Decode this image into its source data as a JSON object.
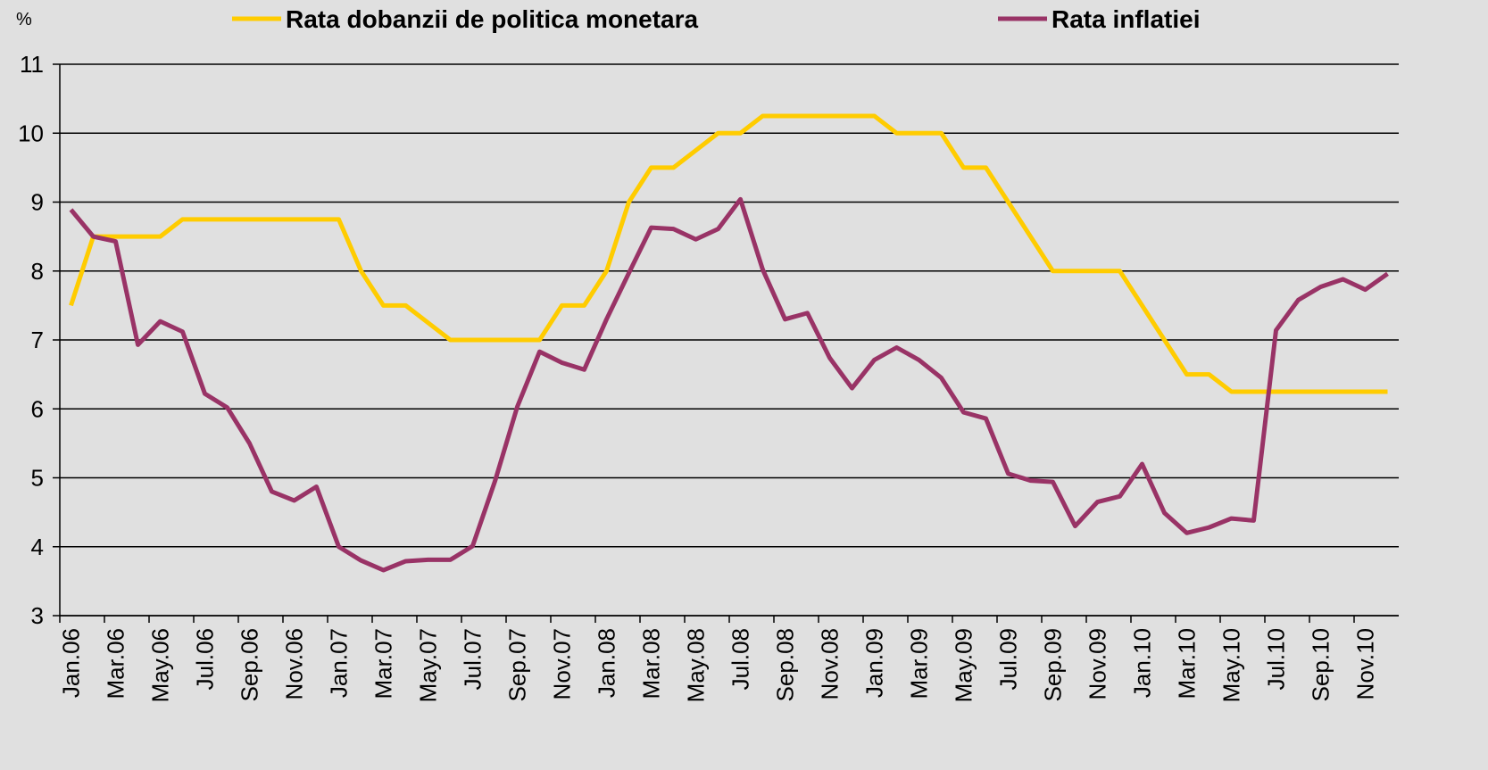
{
  "chart_data": {
    "type": "line",
    "y_label": "%",
    "categories": [
      "Jan.06",
      null,
      "Mar.06",
      null,
      "May.06",
      null,
      "Jul.06",
      null,
      "Sep.06",
      null,
      "Nov.06",
      null,
      "Jan.07",
      null,
      "Mar.07",
      null,
      "May.07",
      null,
      "Jul.07",
      null,
      "Sep.07",
      null,
      "Nov.07",
      null,
      "Jan.08",
      null,
      "Mar.08",
      null,
      "May.08",
      null,
      "Jul.08",
      null,
      "Sep.08",
      null,
      "Nov.08",
      null,
      "Jan.09",
      null,
      "Mar.09",
      null,
      "May.09",
      null,
      "Jul.09",
      null,
      "Sep.09",
      null,
      "Nov.09",
      null,
      "Jan.10",
      null,
      "Mar.10",
      null,
      "May.10",
      null,
      "Jul.10",
      null,
      "Sep.10",
      null,
      "Nov.10",
      null
    ],
    "series": [
      {
        "name": "Rata dobanzii de politica monetara",
        "color": "#ffcc00",
        "values": [
          7.5,
          8.5,
          8.5,
          8.5,
          8.5,
          8.75,
          8.75,
          8.75,
          8.75,
          8.75,
          8.75,
          8.75,
          8.75,
          8.0,
          7.5,
          7.5,
          7.25,
          7.0,
          7.0,
          7.0,
          7.0,
          7.0,
          7.5,
          7.5,
          8.0,
          9.0,
          9.5,
          9.5,
          9.75,
          10.0,
          10.0,
          10.25,
          10.25,
          10.25,
          10.25,
          10.25,
          10.25,
          10.0,
          10.0,
          10.0,
          9.5,
          9.5,
          9.0,
          8.5,
          8.0,
          8.0,
          8.0,
          8.0,
          7.5,
          7.0,
          6.5,
          6.5,
          6.25,
          6.25,
          6.25,
          6.25,
          6.25,
          6.25,
          6.25,
          6.25
        ]
      },
      {
        "name": "Rata inflatiei",
        "color": "#993366",
        "values": [
          8.89,
          8.5,
          8.43,
          6.93,
          7.27,
          7.12,
          6.22,
          6.02,
          5.5,
          4.8,
          4.67,
          4.87,
          4.0,
          3.8,
          3.66,
          3.79,
          3.81,
          3.81,
          4.01,
          4.95,
          6.03,
          6.83,
          6.67,
          6.57,
          7.3,
          7.97,
          8.63,
          8.61,
          8.46,
          8.61,
          9.04,
          8.02,
          7.3,
          7.39,
          6.74,
          6.3,
          6.71,
          6.89,
          6.71,
          6.45,
          5.95,
          5.86,
          5.06,
          4.96,
          4.94,
          4.3,
          4.65,
          4.73,
          5.2,
          4.49,
          4.2,
          4.28,
          4.41,
          4.38,
          7.14,
          7.58,
          7.77,
          7.88,
          7.73,
          7.96
        ]
      }
    ],
    "ylim": [
      3,
      11
    ],
    "yticks": [
      3,
      4,
      5,
      6,
      7,
      8,
      9,
      10,
      11
    ],
    "grid": true,
    "legend": "top"
  }
}
